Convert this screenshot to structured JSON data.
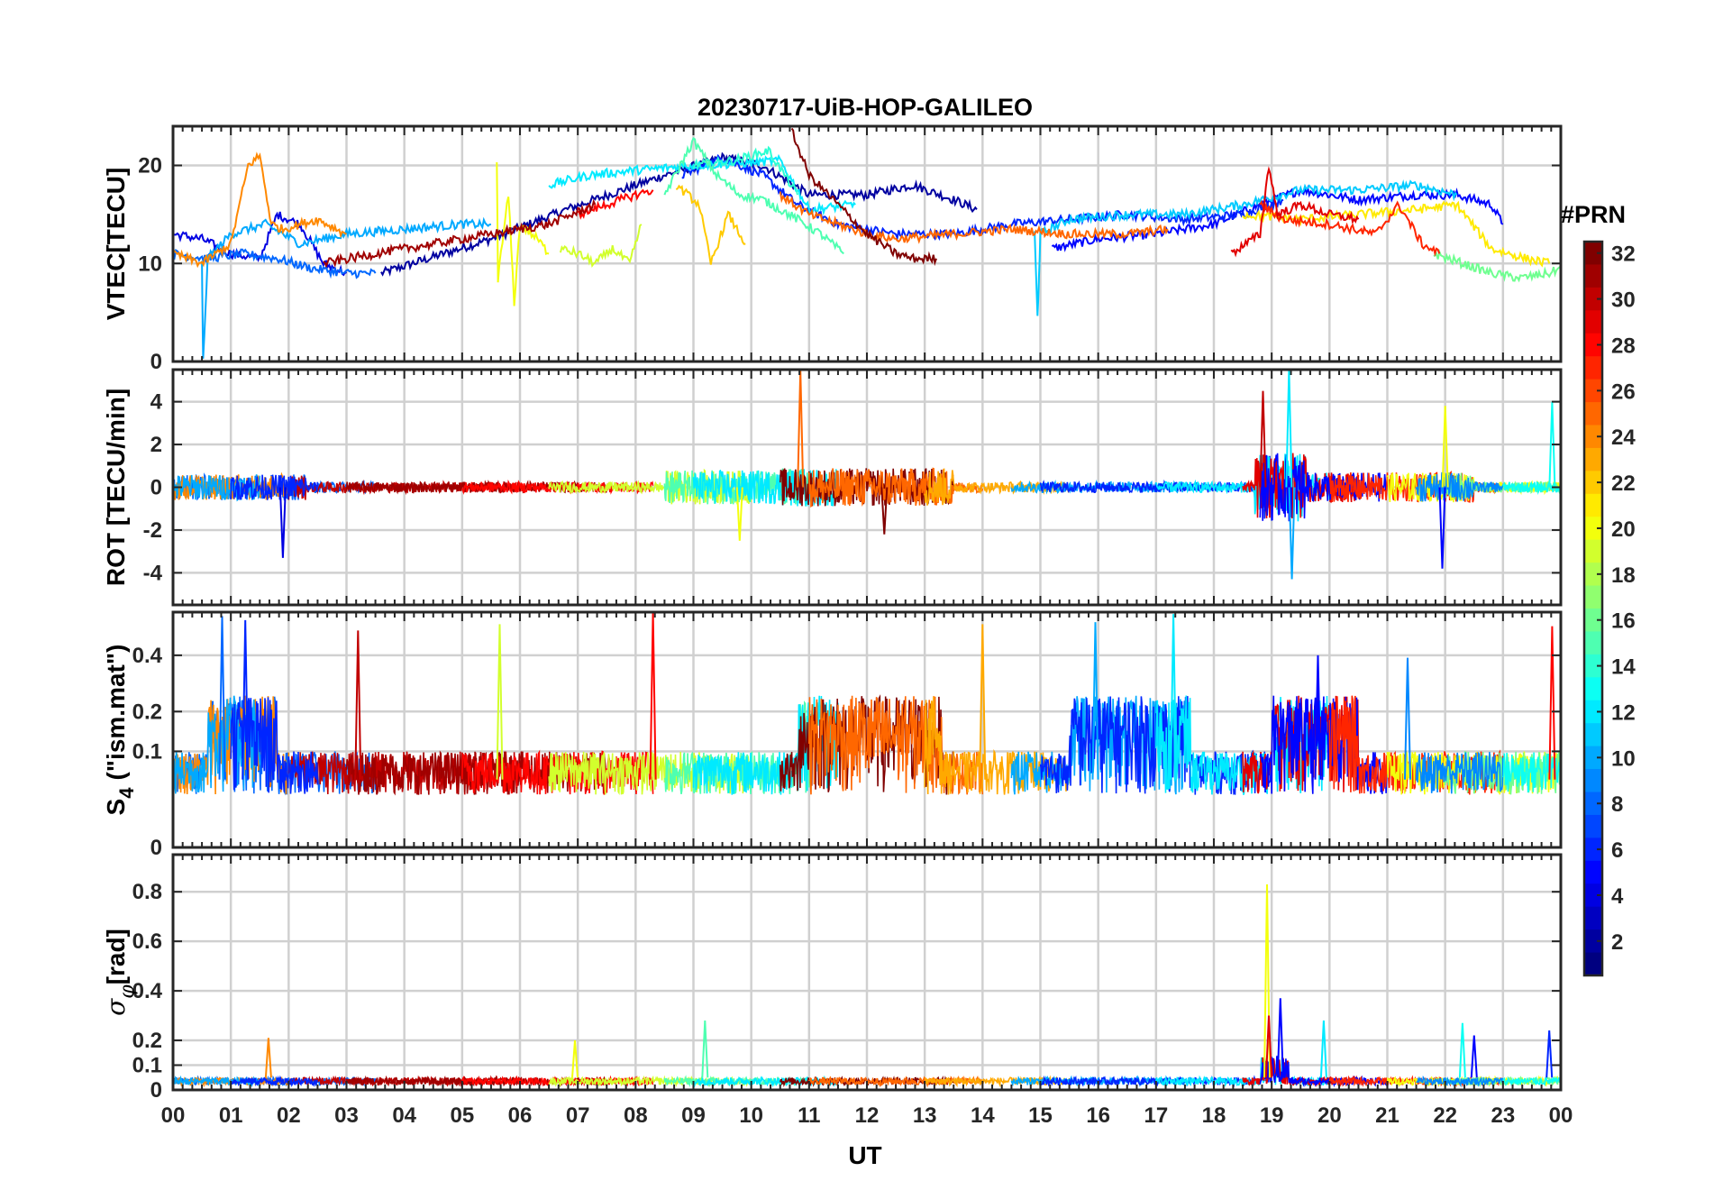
{
  "chart_data": {
    "title": "20230717-UiB-HOP-GALILEO",
    "type": "line",
    "xlabel": "UT",
    "x_tick_labels": [
      "00",
      "01",
      "02",
      "03",
      "04",
      "05",
      "06",
      "07",
      "08",
      "09",
      "10",
      "11",
      "12",
      "13",
      "14",
      "15",
      "16",
      "17",
      "18",
      "19",
      "20",
      "21",
      "22",
      "23",
      "00"
    ],
    "xlim_hours": [
      0,
      24
    ],
    "grid": true,
    "panels": [
      {
        "id": "vtec",
        "ylabel": "VTEC[TECU]",
        "ylim": [
          0,
          24
        ],
        "yticks": [
          0,
          10,
          20
        ],
        "series": [
          {
            "prn": 2,
            "t": [
              3.6,
              5.5,
              6.8,
              8.5,
              9.5,
              10.2,
              11.0,
              12.0,
              12.8,
              13.5,
              13.9
            ],
            "v": [
              9,
              12.5,
              15.5,
              19,
              20.8,
              20,
              17,
              17,
              18,
              16.5,
              15.5
            ]
          },
          {
            "prn": 4,
            "t": [
              0,
              0.5,
              1.0,
              1.5,
              1.8,
              2.2,
              2.6,
              3.0
            ],
            "v": [
              13,
              12.5,
              11,
              10.5,
              15,
              14,
              10,
              9
            ]
          },
          {
            "prn": 5,
            "t": [
              15.2,
              16,
              17,
              18,
              18.8,
              19.5,
              20.5,
              21.5,
              22.2,
              22.8,
              23.0
            ],
            "v": [
              11.5,
              12.5,
              13,
              14,
              16,
              17.5,
              16.5,
              17,
              17,
              16,
              14
            ]
          },
          {
            "prn": 6,
            "t": [
              8.8,
              9.5,
              10.2,
              10.8,
              11.5,
              12.5,
              13.5,
              14.5,
              15.5,
              16.5,
              17.5,
              18.5,
              19.2
            ],
            "v": [
              19,
              20.8,
              19,
              16,
              14,
              13,
              13,
              14,
              14.5,
              15,
              14.5,
              15,
              16.5
            ]
          },
          {
            "prn": 8,
            "t": [
              0,
              0.6,
              1.2,
              1.8,
              2.4,
              3.0,
              3.5
            ],
            "v": [
              11,
              10.5,
              11,
              10.5,
              9.5,
              9,
              9
            ]
          },
          {
            "prn": 10,
            "t": [
              0.5,
              0.52,
              0.6,
              1.0,
              1.6,
              2.2,
              3.0,
              4.0,
              5.0,
              5.5
            ],
            "v": [
              10,
              0,
              10.5,
              13,
              14,
              12,
              13,
              13.5,
              14,
              14
            ]
          },
          {
            "prn": 11,
            "t": [
              14.9,
              14.95,
              15.0,
              15.5,
              16.5,
              17.5,
              18.5,
              19.5,
              20.5,
              21.5,
              22.2
            ],
            "v": [
              13,
              4.5,
              13,
              14.5,
              15,
              15,
              16,
              17.5,
              17.5,
              18,
              17
            ]
          },
          {
            "prn": 12,
            "t": [
              6.5,
              7.2,
              8.0,
              9.0,
              9.8,
              10.5,
              11.0,
              11.8
            ],
            "v": [
              18,
              19,
              19.5,
              20,
              20.2,
              20.5,
              15.5,
              16
            ]
          },
          {
            "prn": 14,
            "t": [
              9.0,
              9.7,
              10.3,
              10.8
            ],
            "v": [
              20,
              20.5,
              21.5,
              17
            ]
          },
          {
            "prn": 15,
            "t": [
              8.5,
              9.0,
              9.4,
              9.8,
              10.2,
              10.8,
              11.2,
              11.6
            ],
            "v": [
              17,
              22.5,
              19,
              17,
              16.5,
              14.5,
              13,
              11
            ]
          },
          {
            "prn": 16,
            "t": [
              21.8,
              22.3,
              22.8,
              23.3,
              23.8,
              24
            ],
            "v": [
              11,
              10,
              9,
              8.5,
              9,
              9.5
            ]
          },
          {
            "prn": 19,
            "t": [
              6.7,
              7.0,
              7.3,
              7.6,
              7.9,
              8.1
            ],
            "v": [
              11.5,
              11,
              10,
              11.5,
              10,
              14
            ]
          },
          {
            "prn": 20,
            "t": [
              5.6,
              5.62,
              5.8,
              5.9,
              6.0,
              6.3,
              6.5
            ],
            "v": [
              20,
              8.5,
              17,
              6,
              14,
              12.5,
              11
            ]
          },
          {
            "prn": 21,
            "t": [
              18.5,
              19.5,
              20.5,
              21.5,
              22.2,
              22.8,
              23.4,
              23.8
            ],
            "v": [
              15,
              14.5,
              15,
              15.5,
              16,
              11.5,
              10.5,
              10
            ]
          },
          {
            "prn": 22,
            "t": [
              8.7,
              9.1,
              9.3,
              9.6,
              9.9
            ],
            "v": [
              18,
              16,
              10,
              15,
              12
            ]
          },
          {
            "prn": 24,
            "t": [
              0,
              0.5,
              1.0,
              1.3,
              1.5,
              1.7,
              1.9,
              2.2,
              2.5,
              3.0
            ],
            "v": [
              11,
              10,
              12,
              20,
              21,
              14,
              13.5,
              14,
              14.5,
              13
            ]
          },
          {
            "prn": 25,
            "t": [
              10.5,
              11.0,
              11.5,
              12.0,
              12.5,
              13.5,
              14.5,
              15.5,
              16.5,
              17.2
            ],
            "v": [
              17,
              15,
              14,
              13,
              12.5,
              13,
              13.5,
              13,
              13,
              13.5
            ]
          },
          {
            "prn": 27,
            "t": [
              18.8,
              19.2,
              20.0,
              20.8,
              21.2,
              21.6,
              21.9
            ],
            "v": [
              16,
              14.5,
              14,
              13,
              16,
              12,
              11
            ]
          },
          {
            "prn": 28,
            "t": [
              7.0,
              7.5,
              8.0,
              8.3
            ],
            "v": [
              15,
              16,
              17,
              17.5
            ]
          },
          {
            "prn": 29,
            "t": [
              18.3,
              18.8,
              18.95,
              19.1,
              19.5,
              20.0,
              20.5
            ],
            "v": [
              11,
              13,
              20,
              15,
              16,
              15,
              14.5
            ]
          },
          {
            "prn": 31,
            "t": [
              2.6,
              3.5,
              4.5,
              5.5,
              6.5,
              7.3
            ],
            "v": [
              10,
              11,
              12,
              13,
              14,
              16
            ]
          },
          {
            "prn": 32,
            "t": [
              10.7,
              11.0,
              11.5,
              12.0,
              12.5,
              12.8,
              13.2
            ],
            "v": [
              23.5,
              19,
              16,
              13,
              11,
              10.5,
              10.5
            ]
          }
        ]
      },
      {
        "id": "rot",
        "ylabel": "ROT [TECU/min]",
        "ylim": [
          -5.5,
          5.5
        ],
        "yticks": [
          -4,
          -2,
          0,
          2,
          4
        ],
        "spikes": [
          {
            "prn": 25,
            "t": 10.85,
            "v": 5.5
          },
          {
            "prn": 4,
            "t": 1.9,
            "v": -3.3
          },
          {
            "prn": 12,
            "t": 19.3,
            "v": 5.5
          },
          {
            "prn": 10,
            "t": 19.35,
            "v": -4.3
          },
          {
            "prn": 5,
            "t": 21.95,
            "v": -3.8
          },
          {
            "prn": 20,
            "t": 22.0,
            "v": 3.8
          },
          {
            "prn": 13,
            "t": 23.85,
            "v": 4.0
          },
          {
            "prn": 20,
            "t": 9.8,
            "v": -2.5
          },
          {
            "prn": 32,
            "t": 12.3,
            "v": -2.2
          },
          {
            "prn": 30,
            "t": 18.85,
            "v": 4.5
          }
        ]
      },
      {
        "id": "s4",
        "ylabel_main": "S",
        "ylabel_sub": "4",
        "ylabel_tail": "(\"ism.mat\")",
        "ylim": [
          0,
          0.6
        ],
        "ytick_values": [
          0,
          0.1,
          0.2,
          0.4
        ],
        "ytick_labels": [
          "0",
          "0.1",
          "0.2",
          "0.4"
        ],
        "scale": "log-like (0 to 0.1 expanded)",
        "spikes": [
          {
            "prn": 8,
            "t": 0.85,
            "v": 0.58
          },
          {
            "prn": 6,
            "t": 1.25,
            "v": 0.56
          },
          {
            "prn": 30,
            "t": 3.2,
            "v": 0.51
          },
          {
            "prn": 19,
            "t": 5.65,
            "v": 0.54
          },
          {
            "prn": 28,
            "t": 8.3,
            "v": 0.6
          },
          {
            "prn": 23,
            "t": 14.0,
            "v": 0.54
          },
          {
            "prn": 10,
            "t": 15.95,
            "v": 0.55
          },
          {
            "prn": 12,
            "t": 17.3,
            "v": 0.59
          },
          {
            "prn": 5,
            "t": 19.8,
            "v": 0.4
          },
          {
            "prn": 9,
            "t": 21.35,
            "v": 0.39
          },
          {
            "prn": 28,
            "t": 23.85,
            "v": 0.53
          }
        ]
      },
      {
        "id": "sigma",
        "ylabel": "σ_φ[rad]",
        "ylim": [
          0,
          0.95
        ],
        "yticks": [
          0,
          0.1,
          0.2,
          0.4,
          0.6,
          0.8
        ],
        "spikes": [
          {
            "prn": 20,
            "t": 18.92,
            "v": 0.83
          },
          {
            "prn": 5,
            "t": 19.15,
            "v": 0.37
          },
          {
            "prn": 29,
            "t": 18.95,
            "v": 0.3
          },
          {
            "prn": 12,
            "t": 19.9,
            "v": 0.28
          },
          {
            "prn": 13,
            "t": 22.3,
            "v": 0.27
          },
          {
            "prn": 5,
            "t": 22.5,
            "v": 0.22
          },
          {
            "prn": 24,
            "t": 1.65,
            "v": 0.21
          },
          {
            "prn": 15,
            "t": 9.2,
            "v": 0.28
          },
          {
            "prn": 20,
            "t": 6.95,
            "v": 0.2
          },
          {
            "prn": 6,
            "t": 23.8,
            "v": 0.24
          }
        ]
      }
    ],
    "colorbar": {
      "title": "#PRN",
      "min": 1,
      "max": 32,
      "colormap": "jet",
      "tick_labels": [
        "2",
        "4",
        "6",
        "8",
        "10",
        "12",
        "14",
        "16",
        "18",
        "20",
        "22",
        "24",
        "26",
        "28",
        "30",
        "32"
      ]
    }
  }
}
